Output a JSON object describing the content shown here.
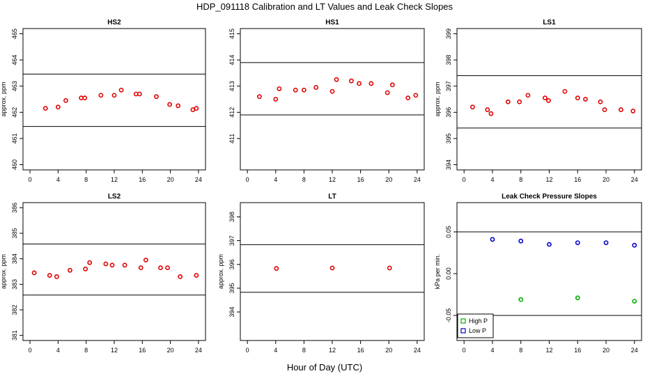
{
  "figure": {
    "title": "HDP_091118  Calibration and LT Values and Leak Check Slopes",
    "xlabel": "Hour of Day (UTC)"
  },
  "colors": {
    "point": "#e00000",
    "high_p": "#00b000",
    "low_p": "#0000cc",
    "line": "#000000"
  },
  "chart_data": [
    {
      "type": "scatter",
      "title": "HS2",
      "ylabel": "approx. ppm",
      "xlim": [
        -1,
        25
      ],
      "ylim": [
        459.8,
        465.2
      ],
      "xticks": [
        0,
        4,
        8,
        12,
        16,
        20,
        24
      ],
      "yticks": [
        460,
        461,
        462,
        463,
        464,
        465
      ],
      "hlines": [
        463.46,
        461.46
      ],
      "series": [
        {
          "color": "#e00000",
          "x": [
            2.2,
            4.0,
            5.1,
            7.3,
            7.8,
            10.1,
            12.0,
            13.0,
            15.1,
            15.6,
            18.0,
            19.9,
            21.1,
            23.2,
            23.7
          ],
          "y": [
            462.15,
            462.2,
            462.45,
            462.55,
            462.55,
            462.65,
            462.65,
            462.85,
            462.7,
            462.7,
            462.6,
            462.3,
            462.25,
            462.1,
            462.15
          ]
        }
      ]
    },
    {
      "type": "scatter",
      "title": "HS1",
      "ylabel": "",
      "xlim": [
        -1,
        25
      ],
      "ylim": [
        409.8,
        415.2
      ],
      "xticks": [
        0,
        4,
        8,
        12,
        16,
        20,
        24
      ],
      "yticks": [
        411,
        412,
        413,
        414,
        415
      ],
      "hlines": [
        413.9,
        411.9
      ],
      "series": [
        {
          "color": "#e00000",
          "x": [
            1.7,
            4.0,
            4.5,
            6.8,
            8.0,
            9.7,
            12.0,
            12.6,
            14.7,
            15.8,
            17.5,
            19.8,
            20.5,
            22.7,
            23.8
          ],
          "y": [
            412.6,
            412.5,
            412.9,
            412.85,
            412.85,
            412.95,
            412.8,
            413.25,
            413.2,
            413.1,
            413.1,
            412.75,
            413.05,
            412.55,
            412.65
          ]
        }
      ]
    },
    {
      "type": "scatter",
      "title": "LS1",
      "ylabel": "approx. ppm",
      "xlim": [
        -1,
        25
      ],
      "ylim": [
        393.8,
        399.2
      ],
      "xticks": [
        0,
        4,
        8,
        12,
        16,
        20,
        24
      ],
      "yticks": [
        394,
        395,
        396,
        397,
        398,
        399
      ],
      "hlines": [
        397.4,
        395.4
      ],
      "series": [
        {
          "color": "#e00000",
          "x": [
            1.2,
            3.3,
            3.8,
            6.2,
            7.8,
            9.0,
            11.4,
            11.9,
            14.2,
            16.0,
            17.1,
            19.2,
            19.8,
            22.1,
            23.8
          ],
          "y": [
            396.2,
            396.1,
            395.95,
            396.4,
            396.4,
            396.65,
            396.55,
            396.45,
            396.8,
            396.55,
            396.5,
            396.4,
            396.1,
            396.1,
            396.05
          ]
        }
      ]
    },
    {
      "type": "scatter",
      "title": "LS2",
      "ylabel": "approx. ppm",
      "xlim": [
        -1,
        25
      ],
      "ylim": [
        380.8,
        386.2
      ],
      "xticks": [
        0,
        4,
        8,
        12,
        16,
        20,
        24
      ],
      "yticks": [
        381,
        382,
        383,
        384,
        385,
        386
      ],
      "hlines": [
        384.58,
        382.58
      ],
      "series": [
        {
          "color": "#e00000",
          "x": [
            0.6,
            2.8,
            3.8,
            5.7,
            7.9,
            8.5,
            10.8,
            11.7,
            13.5,
            15.8,
            16.5,
            18.6,
            19.6,
            21.4,
            23.7
          ],
          "y": [
            383.45,
            383.35,
            383.3,
            383.55,
            383.6,
            383.85,
            383.8,
            383.75,
            383.75,
            383.65,
            383.95,
            383.65,
            383.65,
            383.3,
            383.35
          ]
        }
      ]
    },
    {
      "type": "scatter",
      "title": "LT",
      "ylabel": "approx. ppm",
      "xlim": [
        -1,
        25
      ],
      "ylim": [
        392.8,
        398.6
      ],
      "xticks": [
        0,
        4,
        8,
        12,
        16,
        20,
        24
      ],
      "yticks": [
        394,
        395,
        396,
        397,
        398
      ],
      "hlines": [
        396.83,
        394.83
      ],
      "series": [
        {
          "color": "#e00000",
          "x": [
            4.1,
            12.0,
            20.1
          ],
          "y": [
            395.83,
            395.85,
            395.85
          ]
        }
      ]
    },
    {
      "type": "scatter",
      "title": "Leak Check Pressure Slopes",
      "ylabel": "kPa per min.",
      "xlim": [
        -1,
        25
      ],
      "ylim": [
        -0.08,
        0.085
      ],
      "xticks": [
        0,
        4,
        8,
        12,
        16,
        20,
        24
      ],
      "yticks": [
        -0.05,
        0.0,
        0.05
      ],
      "ytick_labels": [
        "-0.05",
        "0.00",
        "0.05"
      ],
      "hlines": [
        0.05,
        -0.05
      ],
      "legend": {
        "position": "bottom-left"
      },
      "series": [
        {
          "name": "High P",
          "color": "#00b000",
          "x": [
            8,
            16,
            24
          ],
          "y": [
            -0.031,
            -0.029,
            -0.033
          ]
        },
        {
          "name": "Low P",
          "color": "#0000cc",
          "x": [
            4,
            8,
            12,
            16,
            20,
            24
          ],
          "y": [
            0.041,
            0.039,
            0.035,
            0.037,
            0.037,
            0.034
          ]
        }
      ]
    }
  ]
}
